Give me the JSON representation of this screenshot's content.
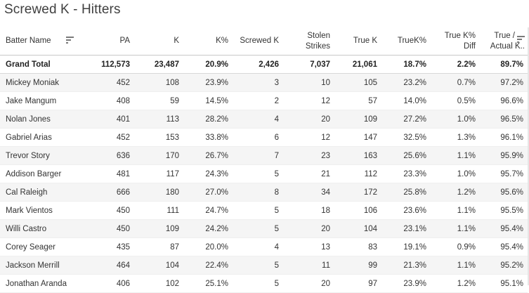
{
  "title": "Screwed K - Hitters",
  "columns": {
    "batter": "Batter Name",
    "pa": "PA",
    "k": "K",
    "kpct": "K%",
    "screwed_k": "Screwed K",
    "stolen_line1": "Stolen",
    "stolen_line2": "Strikes",
    "true_k": "True K",
    "truek_pct": "TrueK%",
    "diff_line1": "True K%",
    "diff_line2": "Diff",
    "ratio_line1": "True /",
    "ratio_line2": "Actual K.."
  },
  "icons": {
    "batter_sort": "sort-icon",
    "ratio_sort": "sort-icon"
  },
  "grand_total": {
    "name": "Grand Total",
    "pa": "112,573",
    "k": "23,487",
    "kpct": "20.9%",
    "screwed_k": "2,426",
    "stolen": "7,037",
    "true_k": "21,061",
    "truek_pct": "18.7%",
    "diff": "2.2%",
    "ratio": "89.7%"
  },
  "rows": [
    {
      "name": "Mickey Moniak",
      "pa": "452",
      "k": "108",
      "kpct": "23.9%",
      "screwed_k": "3",
      "stolen": "10",
      "true_k": "105",
      "truek_pct": "23.2%",
      "diff": "0.7%",
      "ratio": "97.2%"
    },
    {
      "name": "Jake Mangum",
      "pa": "408",
      "k": "59",
      "kpct": "14.5%",
      "screwed_k": "2",
      "stolen": "12",
      "true_k": "57",
      "truek_pct": "14.0%",
      "diff": "0.5%",
      "ratio": "96.6%"
    },
    {
      "name": "Nolan Jones",
      "pa": "401",
      "k": "113",
      "kpct": "28.2%",
      "screwed_k": "4",
      "stolen": "20",
      "true_k": "109",
      "truek_pct": "27.2%",
      "diff": "1.0%",
      "ratio": "96.5%"
    },
    {
      "name": "Gabriel Arias",
      "pa": "452",
      "k": "153",
      "kpct": "33.8%",
      "screwed_k": "6",
      "stolen": "12",
      "true_k": "147",
      "truek_pct": "32.5%",
      "diff": "1.3%",
      "ratio": "96.1%"
    },
    {
      "name": "Trevor Story",
      "pa": "636",
      "k": "170",
      "kpct": "26.7%",
      "screwed_k": "7",
      "stolen": "23",
      "true_k": "163",
      "truek_pct": "25.6%",
      "diff": "1.1%",
      "ratio": "95.9%"
    },
    {
      "name": "Addison Barger",
      "pa": "481",
      "k": "117",
      "kpct": "24.3%",
      "screwed_k": "5",
      "stolen": "21",
      "true_k": "112",
      "truek_pct": "23.3%",
      "diff": "1.0%",
      "ratio": "95.7%"
    },
    {
      "name": "Cal Raleigh",
      "pa": "666",
      "k": "180",
      "kpct": "27.0%",
      "screwed_k": "8",
      "stolen": "34",
      "true_k": "172",
      "truek_pct": "25.8%",
      "diff": "1.2%",
      "ratio": "95.6%"
    },
    {
      "name": "Mark Vientos",
      "pa": "450",
      "k": "111",
      "kpct": "24.7%",
      "screwed_k": "5",
      "stolen": "18",
      "true_k": "106",
      "truek_pct": "23.6%",
      "diff": "1.1%",
      "ratio": "95.5%"
    },
    {
      "name": "Willi Castro",
      "pa": "450",
      "k": "109",
      "kpct": "24.2%",
      "screwed_k": "5",
      "stolen": "20",
      "true_k": "104",
      "truek_pct": "23.1%",
      "diff": "1.1%",
      "ratio": "95.4%"
    },
    {
      "name": "Corey Seager",
      "pa": "435",
      "k": "87",
      "kpct": "20.0%",
      "screwed_k": "4",
      "stolen": "13",
      "true_k": "83",
      "truek_pct": "19.1%",
      "diff": "0.9%",
      "ratio": "95.4%"
    },
    {
      "name": "Jackson Merrill",
      "pa": "464",
      "k": "104",
      "kpct": "22.4%",
      "screwed_k": "5",
      "stolen": "11",
      "true_k": "99",
      "truek_pct": "21.3%",
      "diff": "1.1%",
      "ratio": "95.2%"
    },
    {
      "name": "Jonathan Aranda",
      "pa": "406",
      "k": "102",
      "kpct": "25.1%",
      "screwed_k": "5",
      "stolen": "20",
      "true_k": "97",
      "truek_pct": "23.9%",
      "diff": "1.2%",
      "ratio": "95.1%"
    }
  ]
}
